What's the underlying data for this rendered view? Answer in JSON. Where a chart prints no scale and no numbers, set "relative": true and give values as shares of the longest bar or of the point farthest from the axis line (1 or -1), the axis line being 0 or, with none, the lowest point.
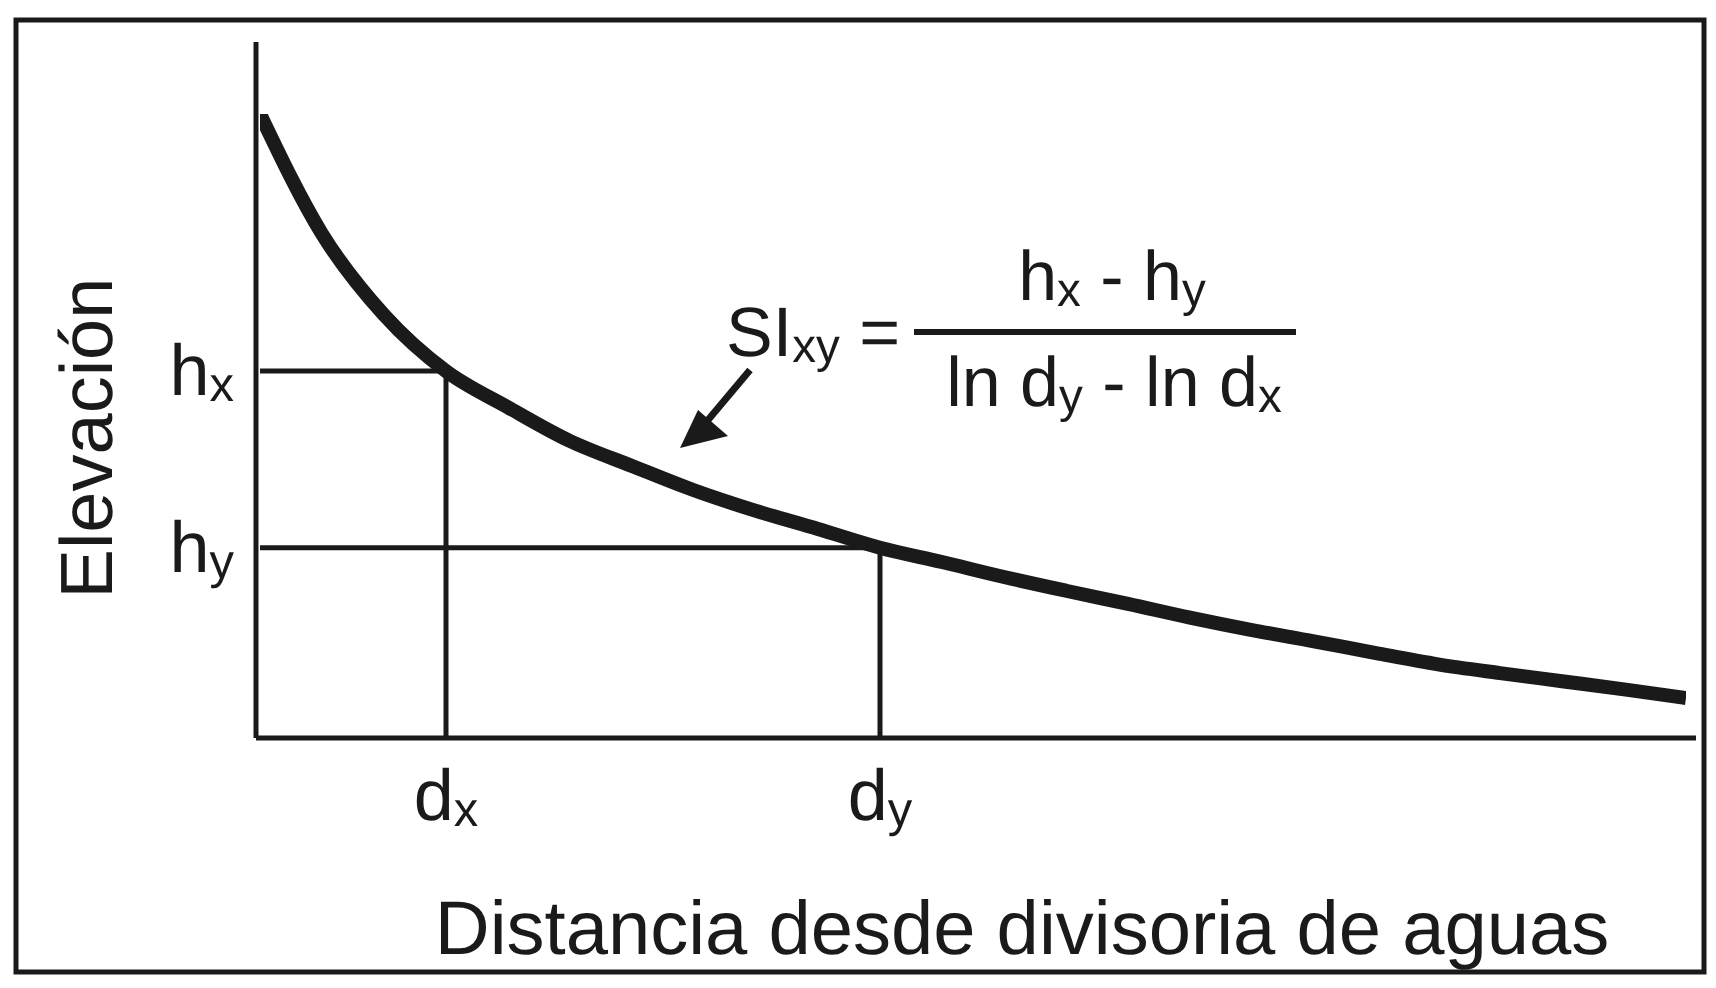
{
  "chart_data": {
    "type": "line",
    "relative": true,
    "xlabel": "Distancia desde divisoria de aguas",
    "ylabel": "Elevación",
    "categories": [
      null,
      null,
      null,
      "d$_{x}$",
      null,
      null,
      null,
      null,
      null,
      null,
      "d$_{y}$",
      null,
      null,
      null,
      null,
      null,
      null,
      null,
      null,
      null,
      null,
      null,
      null,
      null
    ],
    "series": [
      {
        "color": "#1a1a1a",
        "values": [
          1,
          0.808,
          0.678,
          0.588,
          0.53,
          0.476,
          0.436,
          0.397,
          0.364,
          0.335,
          0.305,
          0.282,
          0.258,
          0.236,
          0.215,
          0.193,
          0.173,
          0.155,
          0.136,
          0.118,
          0.104,
          0.091,
          0.078,
          0.064
        ]
      }
    ],
    "ref_lines": [
      {
        "axis": "y",
        "value": 0.588,
        "label": "h$_{x}$",
        "color": "#1a1a1a"
      },
      {
        "axis": "y",
        "value": 0.305,
        "label": "h$_{y}$",
        "color": "#1a1a1a"
      },
      {
        "axis": "x",
        "value": "d$_{x}$",
        "color": "#1a1a1a"
      },
      {
        "axis": "x",
        "value": "d$_{y}$",
        "color": "#1a1a1a"
      }
    ],
    "annotations": [
      "SI$_{xy}$ =",
      "h$_{x}$ - h$_{y}$",
      "ln d$_{y}$ - ln d$_{x}$"
    ]
  }
}
